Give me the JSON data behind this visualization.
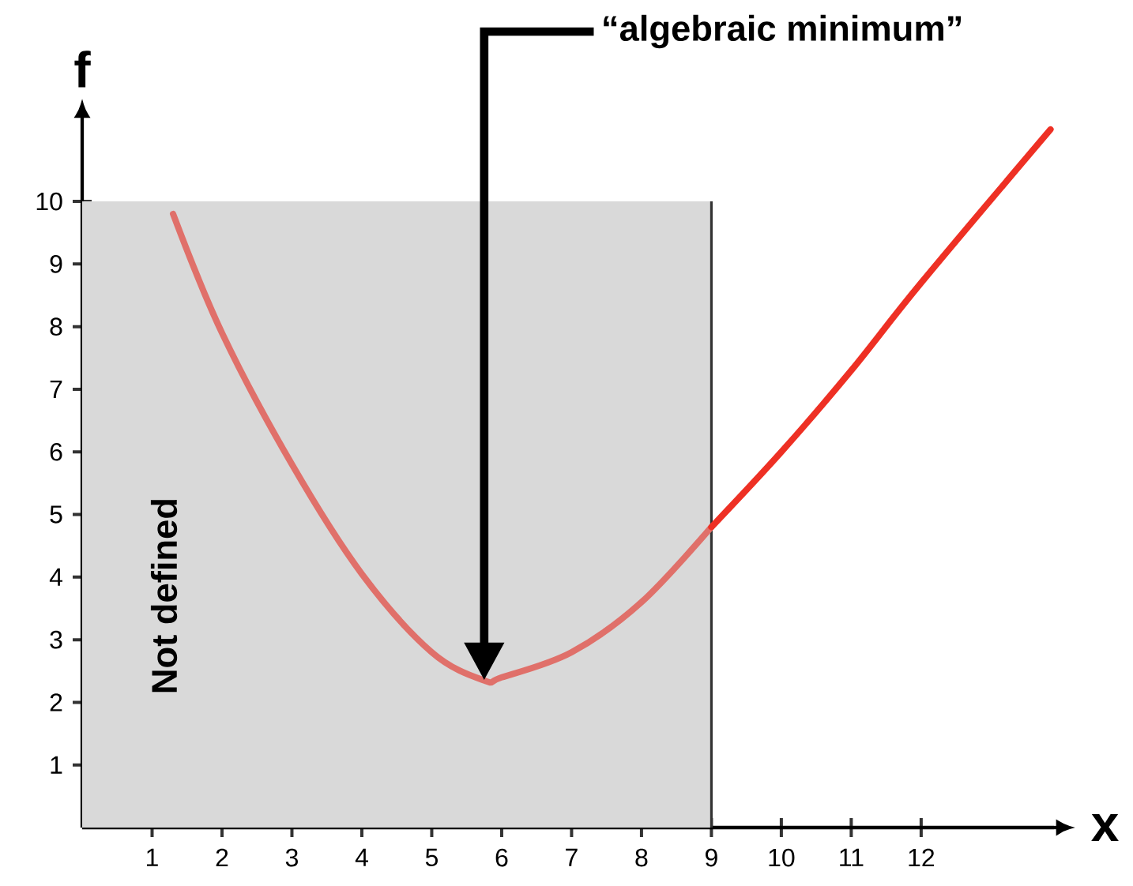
{
  "chart_data": {
    "type": "line",
    "xlabel": "x",
    "ylabel": "f",
    "xlim": [
      0,
      13.9
    ],
    "ylim": [
      0,
      11.3
    ],
    "xticks": [
      1,
      2,
      3,
      4,
      5,
      6,
      7,
      8,
      9,
      10,
      11,
      12
    ],
    "yticks": [
      1,
      2,
      3,
      4,
      5,
      6,
      7,
      8,
      9,
      10
    ],
    "marker": "none",
    "line_style": "solid",
    "series": [
      {
        "color": "#e0706a",
        "x": [
          1.3,
          2,
          3,
          4,
          5,
          5.75,
          6,
          7,
          8,
          9
        ],
        "values": [
          9.8,
          7.9,
          5.8,
          4.05,
          2.8,
          2.35,
          2.4,
          2.8,
          3.6,
          4.8
        ]
      },
      {
        "color": "#ee3024",
        "x": [
          9,
          10,
          11,
          12,
          13.85
        ],
        "values": [
          4.8,
          6.0,
          7.3,
          8.7,
          11.15
        ]
      }
    ],
    "bands": [
      {
        "axis": "x",
        "from": 0,
        "to": 9,
        "label": "Not defined",
        "color": "#d9d9d9"
      }
    ],
    "annotations": [
      "“algebraic minimum”"
    ]
  }
}
